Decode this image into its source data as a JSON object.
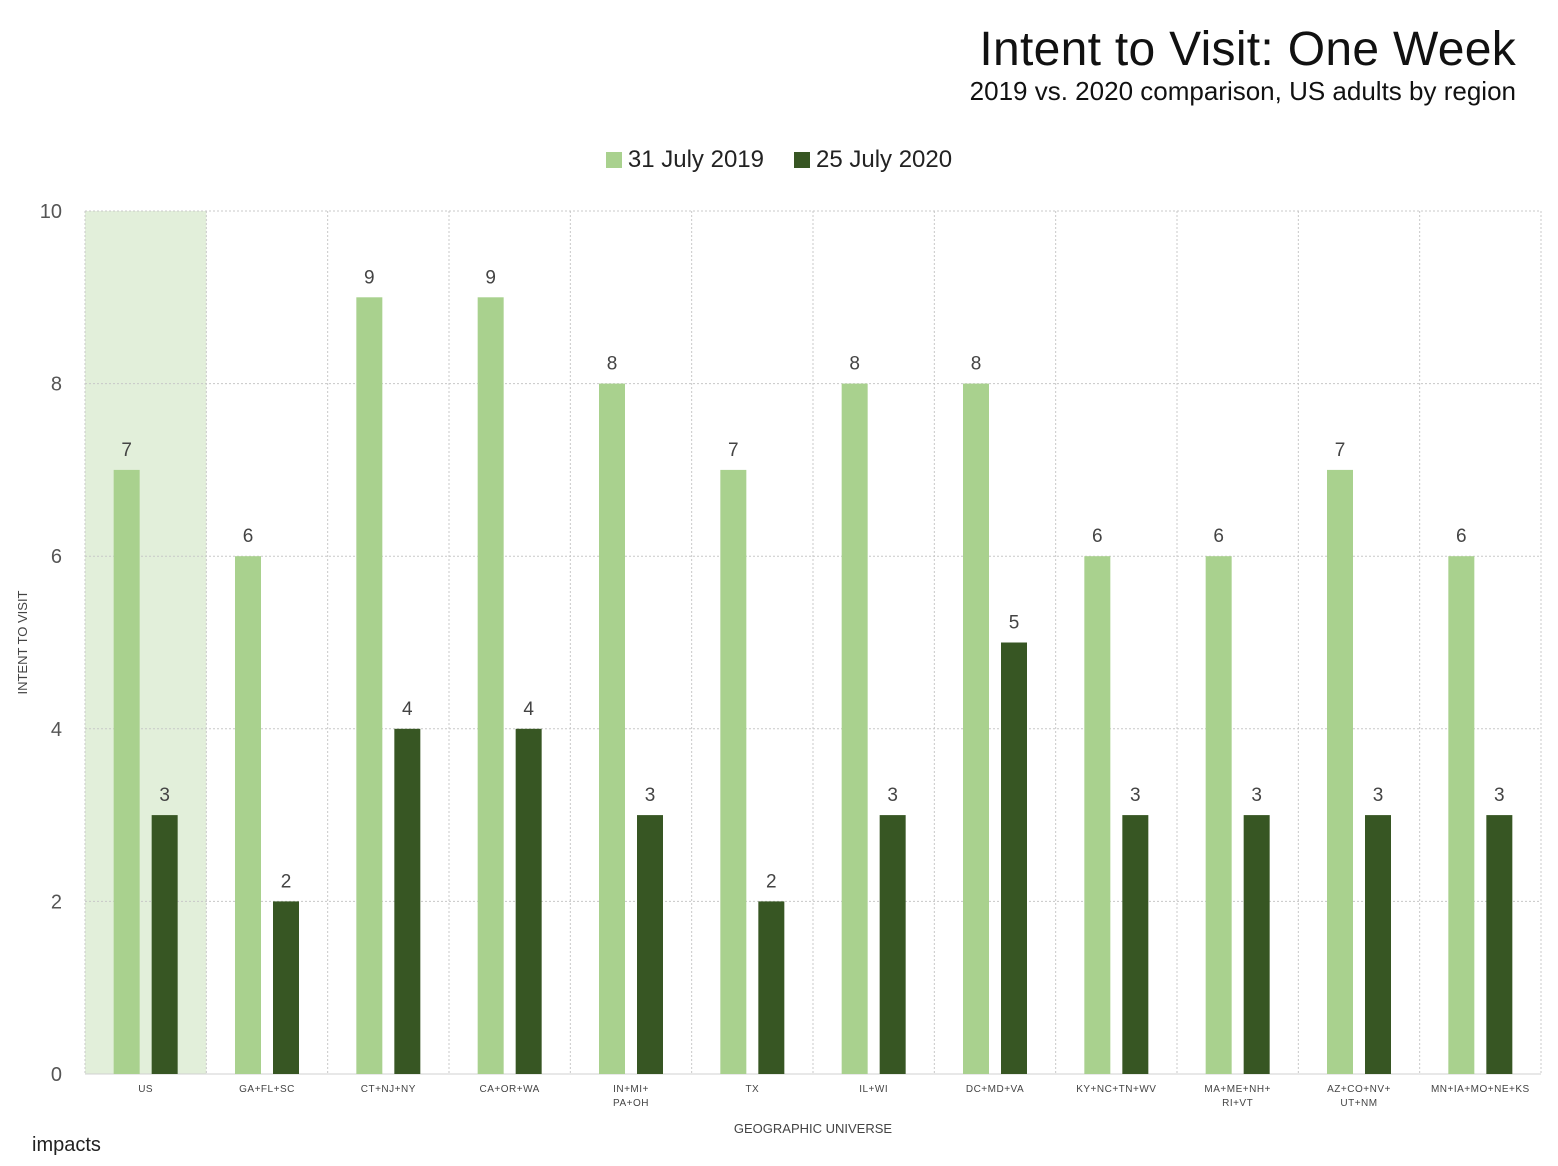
{
  "chart_data": {
    "type": "bar",
    "title": "Intent to Visit: One Week",
    "subtitle": "2019 vs. 2020 comparison, US adults by region",
    "xlabel": "GEOGRAPHIC UNIVERSE",
    "ylabel": "INTENT TO VISIT",
    "ylim": [
      0,
      10
    ],
    "yticks": [
      0,
      2,
      4,
      6,
      8,
      10
    ],
    "grid": true,
    "legend_position": "top-center",
    "highlight_category": "US",
    "categories": [
      [
        "US"
      ],
      [
        "GA+FL+SC"
      ],
      [
        "CT+NJ+NY"
      ],
      [
        "CA+OR+WA"
      ],
      [
        "IN+MI+",
        "PA+OH"
      ],
      [
        "TX"
      ],
      [
        "IL+WI"
      ],
      [
        "DC+MD+VA"
      ],
      [
        "KY+NC+TN+WV"
      ],
      [
        "MA+ME+NH+",
        "RI+VT"
      ],
      [
        "AZ+CO+NV+",
        "UT+NM"
      ],
      [
        "MN+IA+MO+NE+KS"
      ]
    ],
    "series": [
      {
        "name": "31 July 2019",
        "color": "#a9d18e",
        "values": [
          7,
          6,
          9,
          9,
          8,
          7,
          8,
          8,
          6,
          6,
          7,
          6
        ]
      },
      {
        "name": "25 July 2020",
        "color": "#375623",
        "values": [
          3,
          2,
          4,
          4,
          3,
          2,
          3,
          5,
          3,
          3,
          3,
          3
        ]
      }
    ],
    "highlight_color": "#e2efda"
  },
  "branding": {
    "logo_text": "impacts"
  }
}
